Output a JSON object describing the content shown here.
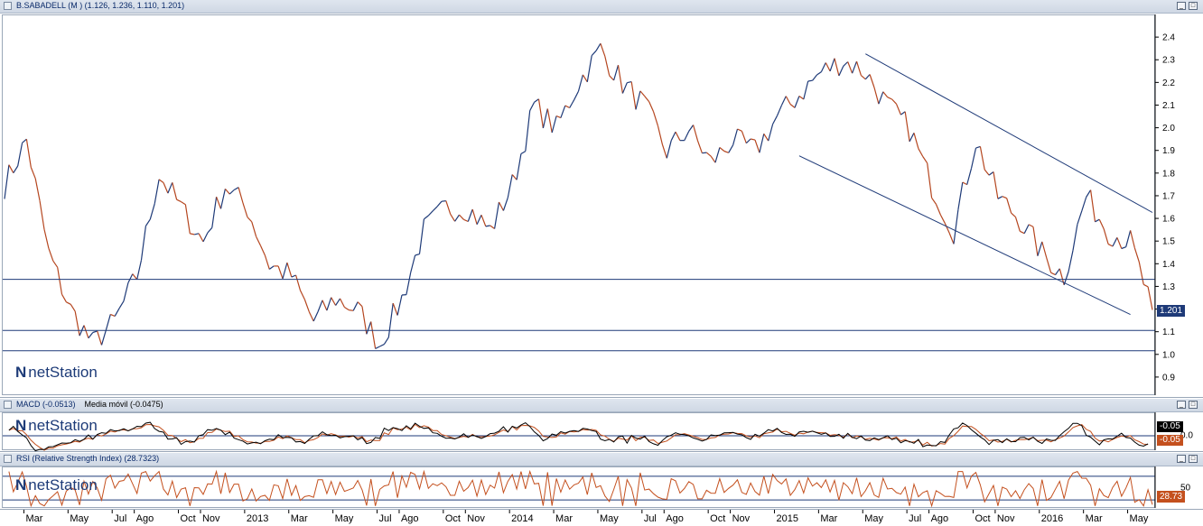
{
  "main_panel": {
    "title": "B.SABADELL (M ) (1.126, 1.236, 1.110, 1.201)",
    "last_price": "1.201",
    "y_ticks": [
      "2.4",
      "2.3",
      "2.2",
      "2.1",
      "2.0",
      "1.9",
      "1.8",
      "1.7",
      "1.6",
      "1.5",
      "1.4",
      "1.3",
      "1.2",
      "1.1",
      "1.0",
      "0.9"
    ],
    "logo": "netStation"
  },
  "macd_panel": {
    "title": "MACD (-0.0513)",
    "title_extra": "Media móvil (-0.0475)",
    "y_ticks": [
      "0.0"
    ],
    "badge_macd": "-0.05",
    "badge_signal": "-0.05",
    "logo": "netStation"
  },
  "rsi_panel": {
    "title": "RSI (Relative Strength Index) (28.7323)",
    "y_ticks": [
      "50"
    ],
    "badge": "28.73",
    "logo": "netStation"
  },
  "x_axis": {
    "labels": [
      "Mar",
      "May",
      "Jul",
      "Ago",
      "Oct",
      "Nov",
      "2013",
      "Mar",
      "May",
      "Jul",
      "Ago",
      "Oct",
      "Nov",
      "2014",
      "Mar",
      "May",
      "Jul",
      "Ago",
      "Oct",
      "Nov",
      "2015",
      "Mar",
      "May",
      "Jul",
      "Ago",
      "Oct",
      "Nov",
      "2016",
      "Mar",
      "May"
    ]
  },
  "colors": {
    "price_line": "#b5461f",
    "price_line_alt": "#1e3a78",
    "macd_line": "#000000",
    "signal_line": "#c4501e",
    "rsi_line": "#c4501e",
    "hlines": "#1e3a78"
  },
  "chart_data": [
    {
      "type": "line",
      "title": "B.SABADELL (M ) (1.126, 1.236, 1.110, 1.201)",
      "x": [
        "2012-02",
        "2012-03",
        "2012-04",
        "2012-05",
        "2012-06",
        "2012-07",
        "2012-08",
        "2012-09",
        "2012-10",
        "2012-11",
        "2012-12",
        "2013-01",
        "2013-02",
        "2013-03",
        "2013-04",
        "2013-05",
        "2013-06",
        "2013-07",
        "2013-08",
        "2013-09",
        "2013-10",
        "2013-11",
        "2013-12",
        "2014-01",
        "2014-02",
        "2014-03",
        "2014-04",
        "2014-05",
        "2014-06",
        "2014-07",
        "2014-08",
        "2014-09",
        "2014-10",
        "2014-11",
        "2014-12",
        "2015-01",
        "2015-02",
        "2015-03",
        "2015-04",
        "2015-05",
        "2015-06",
        "2015-07",
        "2015-08",
        "2015-09",
        "2015-10",
        "2015-11",
        "2015-12",
        "2016-01",
        "2016-02",
        "2016-03",
        "2016-04",
        "2016-05",
        "2016-06"
      ],
      "series": [
        {
          "values": [
            1.75,
            1.95,
            1.45,
            1.2,
            1.05,
            1.15,
            1.35,
            1.8,
            1.65,
            1.5,
            1.75,
            1.65,
            1.4,
            1.35,
            1.15,
            1.25,
            1.2,
            1.05,
            1.25,
            1.55,
            1.65,
            1.65,
            1.55,
            1.75,
            2.1,
            2.0,
            2.2,
            2.35,
            2.2,
            2.1,
            1.9,
            2.0,
            1.85,
            1.95,
            1.9,
            2.05,
            2.15,
            2.25,
            2.3,
            2.25,
            2.1,
            2.0,
            1.75,
            1.55,
            1.95,
            1.7,
            1.6,
            1.45,
            1.35,
            1.7,
            1.55,
            1.5,
            1.2
          ]
        }
      ],
      "horizontal_lines": [
        1.335,
        1.11,
        1.02
      ],
      "trend_channel": {
        "upper": {
          "from": [
            "2015-05",
            2.33
          ],
          "to": [
            "2016-06",
            1.63
          ]
        },
        "lower": {
          "from": [
            "2015-02",
            1.88
          ],
          "to": [
            "2016-05",
            1.18
          ]
        }
      },
      "ylim": [
        0.82,
        2.5
      ]
    },
    {
      "type": "line",
      "title": "MACD (-0.0513)",
      "series": [
        {
          "name": "MACD (-0.0513)",
          "last": -0.0513
        },
        {
          "name": "Media móvil (-0.0475)",
          "last": -0.0475
        }
      ],
      "horizontal_lines": [
        0.0
      ]
    },
    {
      "type": "line",
      "title": "RSI (Relative Strength Index) (28.7323)",
      "series": [
        {
          "name": "RSI (Relative Strength Index)",
          "last": 28.7323
        }
      ],
      "horizontal_lines": [
        70,
        30
      ]
    }
  ]
}
